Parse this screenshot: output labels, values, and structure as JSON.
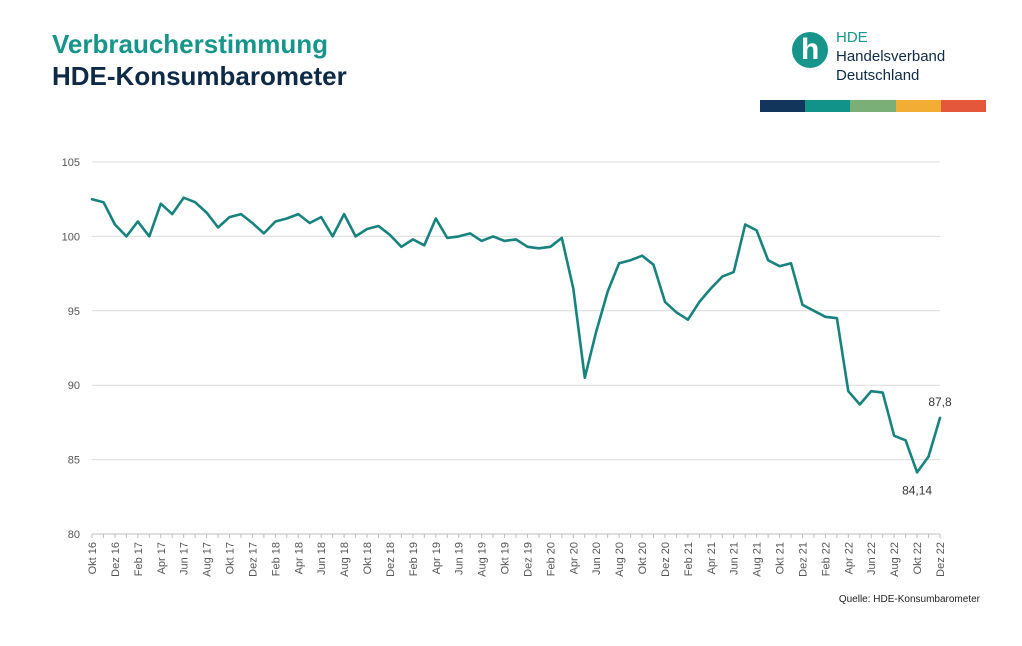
{
  "header": {
    "title_line1": "Verbraucherstimmung",
    "title_line2": "HDE-Konsumbarometer"
  },
  "logo": {
    "abbr": "HDE",
    "name_line1": "Handelsverband",
    "name_line2": "Deutschland",
    "icon": "hde-h-logo-icon"
  },
  "stripe_colors": [
    "#12355b",
    "#12938a",
    "#7aaf78",
    "#f2ad35",
    "#e5573a"
  ],
  "source": "Quelle: HDE-Konsumbarometer",
  "chart_data": {
    "type": "line",
    "title": "",
    "xlabel": "",
    "ylabel": "",
    "ylim": [
      80,
      105
    ],
    "yticks": [
      80,
      85,
      90,
      95,
      100,
      105
    ],
    "grid": true,
    "line_color": "#17827e",
    "x_tick_labels": [
      "Okt 16",
      "Dez 16",
      "Feb 17",
      "Apr 17",
      "Jun 17",
      "Aug 17",
      "Okt 17",
      "Dez 17",
      "Feb 18",
      "Apr 18",
      "Jun 18",
      "Aug 18",
      "Okt 18",
      "Dez 18",
      "Feb 19",
      "Apr 19",
      "Jun 19",
      "Aug 19",
      "Okt 19",
      "Dez 19",
      "Feb 20",
      "Apr 20",
      "Jun 20",
      "Aug 20",
      "Okt 20",
      "Dez 20",
      "Feb 21",
      "Apr 21",
      "Jun 21",
      "Aug 21",
      "Okt 21",
      "Dez 21",
      "Feb 22",
      "Apr 22",
      "Jun 22",
      "Aug 22",
      "Okt 22",
      "Dez 22"
    ],
    "x_tick_every": 2,
    "start_month": "2016-10",
    "values": [
      102.5,
      102.3,
      100.8,
      100.0,
      101.0,
      100.0,
      102.2,
      101.5,
      102.6,
      102.3,
      101.6,
      100.6,
      101.3,
      101.5,
      100.9,
      100.2,
      101.0,
      101.2,
      101.5,
      100.9,
      101.3,
      100.0,
      101.5,
      100.0,
      100.5,
      100.7,
      100.1,
      99.3,
      99.8,
      99.4,
      101.2,
      99.9,
      100.0,
      100.2,
      99.7,
      100.0,
      99.7,
      99.8,
      99.3,
      99.2,
      99.3,
      99.9,
      96.5,
      90.5,
      93.6,
      96.3,
      98.2,
      98.4,
      98.7,
      98.1,
      95.6,
      94.9,
      94.4,
      95.6,
      96.5,
      97.3,
      97.6,
      100.8,
      100.4,
      98.4,
      98.0,
      98.2,
      95.4,
      95.0,
      94.6,
      94.5,
      89.6,
      88.7,
      89.6,
      89.5,
      86.6,
      86.3,
      84.14,
      85.2,
      87.8
    ],
    "annotations": [
      {
        "index": 72,
        "text": "84,14",
        "position": "below"
      },
      {
        "index": 74,
        "text": "87,8",
        "position": "above"
      }
    ]
  }
}
